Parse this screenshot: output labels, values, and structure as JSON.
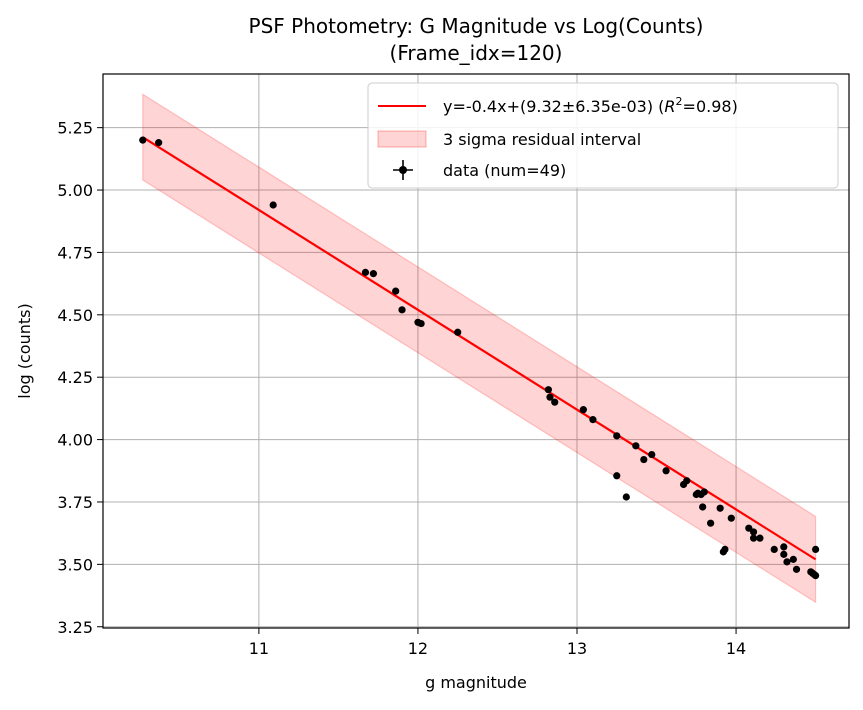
{
  "chart_data": {
    "type": "scatter",
    "title": "PSF Photometry: G Magnitude vs Log(Counts)",
    "subtitle": "(Frame_idx=120)",
    "xlabel": "g magnitude",
    "ylabel": "log (counts)",
    "xlim": [
      10.02,
      14.71
    ],
    "ylim": [
      3.245,
      5.465
    ],
    "xticks": [
      11,
      12,
      13,
      14
    ],
    "yticks": [
      3.25,
      3.5,
      3.75,
      4.0,
      4.25,
      4.5,
      4.75,
      5.0,
      5.25
    ],
    "grid": true,
    "legend_position": "top-right",
    "fit": {
      "slope": -0.4,
      "intercept": 9.32,
      "x_range": [
        10.27,
        14.5
      ],
      "color": "#ff0000",
      "legend_label": "y=-0.4x+(9.32±6.35e-03) (R²=0.98)",
      "legend_prefix": "y=-0.4x+(9.32±6.35e-03) (",
      "legend_r": "R",
      "legend_sup": "2",
      "legend_suffix": "=0.98)"
    },
    "band": {
      "half_width": 0.172,
      "color": "#ff0000",
      "opacity": 0.17,
      "legend_label": "3 sigma residual interval"
    },
    "data_series": {
      "legend_label": "data (num=49)",
      "color": "#000000",
      "x": [
        10.27,
        10.37,
        11.09,
        11.67,
        11.72,
        11.86,
        11.9,
        12.0,
        12.02,
        12.25,
        12.82,
        12.83,
        12.86,
        13.04,
        13.1,
        13.25,
        13.25,
        13.31,
        13.37,
        13.42,
        13.47,
        13.56,
        13.67,
        13.69,
        13.75,
        13.76,
        13.78,
        13.79,
        13.8,
        13.84,
        13.9,
        13.92,
        13.93,
        13.97,
        14.08,
        14.11,
        14.11,
        14.15,
        14.24,
        14.3,
        14.3,
        14.32,
        14.36,
        14.38,
        14.47,
        14.48,
        14.5,
        14.5,
        14.49
      ],
      "y": [
        5.2,
        5.19,
        4.94,
        4.67,
        4.665,
        4.595,
        4.52,
        4.47,
        4.465,
        4.43,
        4.2,
        4.17,
        4.15,
        4.12,
        4.08,
        4.015,
        3.855,
        3.77,
        3.975,
        3.92,
        3.94,
        3.875,
        3.82,
        3.835,
        3.78,
        3.785,
        3.78,
        3.73,
        3.79,
        3.665,
        3.725,
        3.55,
        3.56,
        3.685,
        3.645,
        3.63,
        3.605,
        3.605,
        3.56,
        3.57,
        3.54,
        3.51,
        3.52,
        3.48,
        3.47,
        3.465,
        3.455,
        3.56,
        3.46
      ]
    }
  }
}
